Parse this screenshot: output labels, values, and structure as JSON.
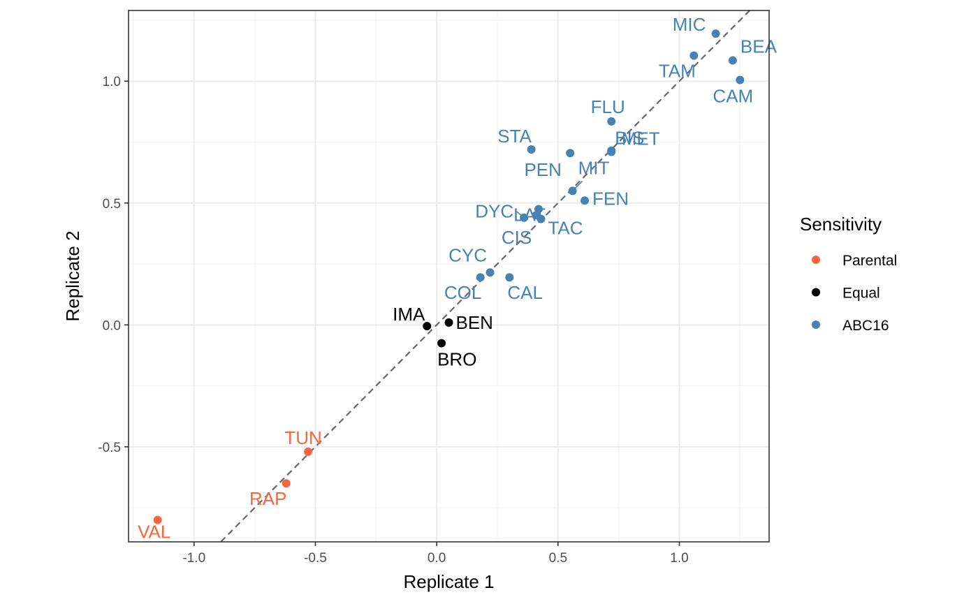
{
  "chart_data": {
    "type": "scatter",
    "xlabel": "Replicate 1",
    "ylabel": "Replicate 2",
    "xlim": [
      -1.27,
      1.37
    ],
    "ylim": [
      -0.89,
      1.29
    ],
    "x_ticks": [
      {
        "value": -1.0,
        "label": "-1.0"
      },
      {
        "value": -0.5,
        "label": "-0.5"
      },
      {
        "value": 0.0,
        "label": "0.0"
      },
      {
        "value": 0.5,
        "label": "0.5"
      },
      {
        "value": 1.0,
        "label": "1.0"
      }
    ],
    "y_ticks": [
      {
        "value": -0.5,
        "label": "-0.5"
      },
      {
        "value": 0.0,
        "label": "0.0"
      },
      {
        "value": 0.5,
        "label": "0.5"
      },
      {
        "value": 1.0,
        "label": "1.0"
      }
    ],
    "grid": true,
    "reference_line": {
      "type": "identity",
      "style": "dashed",
      "color": "#666666"
    },
    "legend": {
      "title": "Sensitivity",
      "placement": "right",
      "entries": [
        {
          "name": "Parental",
          "color": "#f8663f"
        },
        {
          "name": "Equal",
          "color": "#000000"
        },
        {
          "name": "ABC16",
          "color": "#4682b4"
        }
      ]
    },
    "series": [
      {
        "name": "Parental",
        "color": "#f8663f",
        "points": [
          {
            "label": "VAL",
            "x": -1.15,
            "y": -0.8
          },
          {
            "label": "RAP",
            "x": -0.62,
            "y": -0.65
          },
          {
            "label": "TUN",
            "x": -0.53,
            "y": -0.52
          }
        ]
      },
      {
        "name": "Equal",
        "color": "#000000",
        "points": [
          {
            "label": "IMA",
            "x": -0.04,
            "y": -0.005
          },
          {
            "label": "BEN",
            "x": 0.05,
            "y": 0.01
          },
          {
            "label": "BRO",
            "x": 0.02,
            "y": -0.075
          }
        ]
      },
      {
        "name": "ABC16",
        "color": "#4682b4",
        "points": [
          {
            "label": "COL",
            "x": 0.18,
            "y": 0.195
          },
          {
            "label": "CYC",
            "x": 0.22,
            "y": 0.215
          },
          {
            "label": "CAL",
            "x": 0.3,
            "y": 0.195
          },
          {
            "label": "DYC",
            "x": 0.36,
            "y": 0.44
          },
          {
            "label": "CIS",
            "x": 0.41,
            "y": 0.45
          },
          {
            "label": "LAT",
            "x": 0.42,
            "y": 0.475
          },
          {
            "label": "TAC",
            "x": 0.43,
            "y": 0.435
          },
          {
            "label": "MIT",
            "x": 0.56,
            "y": 0.55
          },
          {
            "label": "FEN",
            "x": 0.61,
            "y": 0.51
          },
          {
            "label": "STA",
            "x": 0.39,
            "y": 0.72
          },
          {
            "label": "PEN",
            "x": 0.55,
            "y": 0.705
          },
          {
            "label": "BIS",
            "x": 0.72,
            "y": 0.715
          },
          {
            "label": "MET",
            "x": 0.72,
            "y": 0.71
          },
          {
            "label": "FLU",
            "x": 0.72,
            "y": 0.835
          },
          {
            "label": "TAM",
            "x": 1.06,
            "y": 1.105
          },
          {
            "label": "MIC",
            "x": 1.15,
            "y": 1.195
          },
          {
            "label": "BEA",
            "x": 1.22,
            "y": 1.085
          },
          {
            "label": "CAM",
            "x": 1.25,
            "y": 1.005
          }
        ]
      }
    ]
  }
}
